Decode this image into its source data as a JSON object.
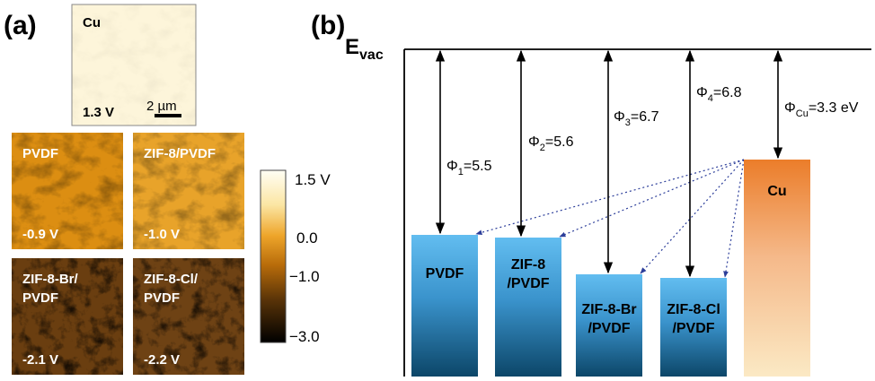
{
  "panel_a": {
    "label": "(a)",
    "cu_image": {
      "name": "Cu",
      "potential": "1.3 V",
      "scale_bar": "2 µm"
    },
    "images": [
      {
        "lines": [
          "PVDF"
        ],
        "potential": "-0.9 V"
      },
      {
        "lines": [
          "ZIF-8/PVDF"
        ],
        "potential": "-1.0 V"
      },
      {
        "lines": [
          "ZIF-8-Br/",
          "PVDF"
        ],
        "potential": "-2.1 V"
      },
      {
        "lines": [
          "ZIF-8-Cl/",
          "PVDF"
        ],
        "potential": "-2.2 V"
      }
    ],
    "colorbar": {
      "labels": [
        "1.5 V",
        "0.0",
        "−1.0",
        "−3.0"
      ]
    }
  },
  "panel_b": {
    "label": "(b)",
    "vacuum": {
      "symbol": "E",
      "sub": "vac"
    },
    "bars": [
      {
        "lines": [
          "PVDF"
        ],
        "phi": {
          "symbol": "Φ",
          "sub": "1",
          "text": "=5.5"
        }
      },
      {
        "lines": [
          "ZIF-8",
          "/PVDF"
        ],
        "phi": {
          "symbol": "Φ",
          "sub": "2",
          "text": "=5.6"
        }
      },
      {
        "lines": [
          "ZIF-8-Br",
          "/PVDF"
        ],
        "phi": {
          "symbol": "Φ",
          "sub": "3",
          "text": "=6.7"
        }
      },
      {
        "lines": [
          "ZIF-8-Cl",
          "/PVDF"
        ],
        "phi": {
          "symbol": "Φ",
          "sub": "4",
          "text": "=6.8"
        }
      },
      {
        "lines": [
          "Cu"
        ],
        "phi": {
          "symbol": "Φ",
          "sub": "Cu",
          "text": "=3.3 eV"
        }
      }
    ]
  }
}
